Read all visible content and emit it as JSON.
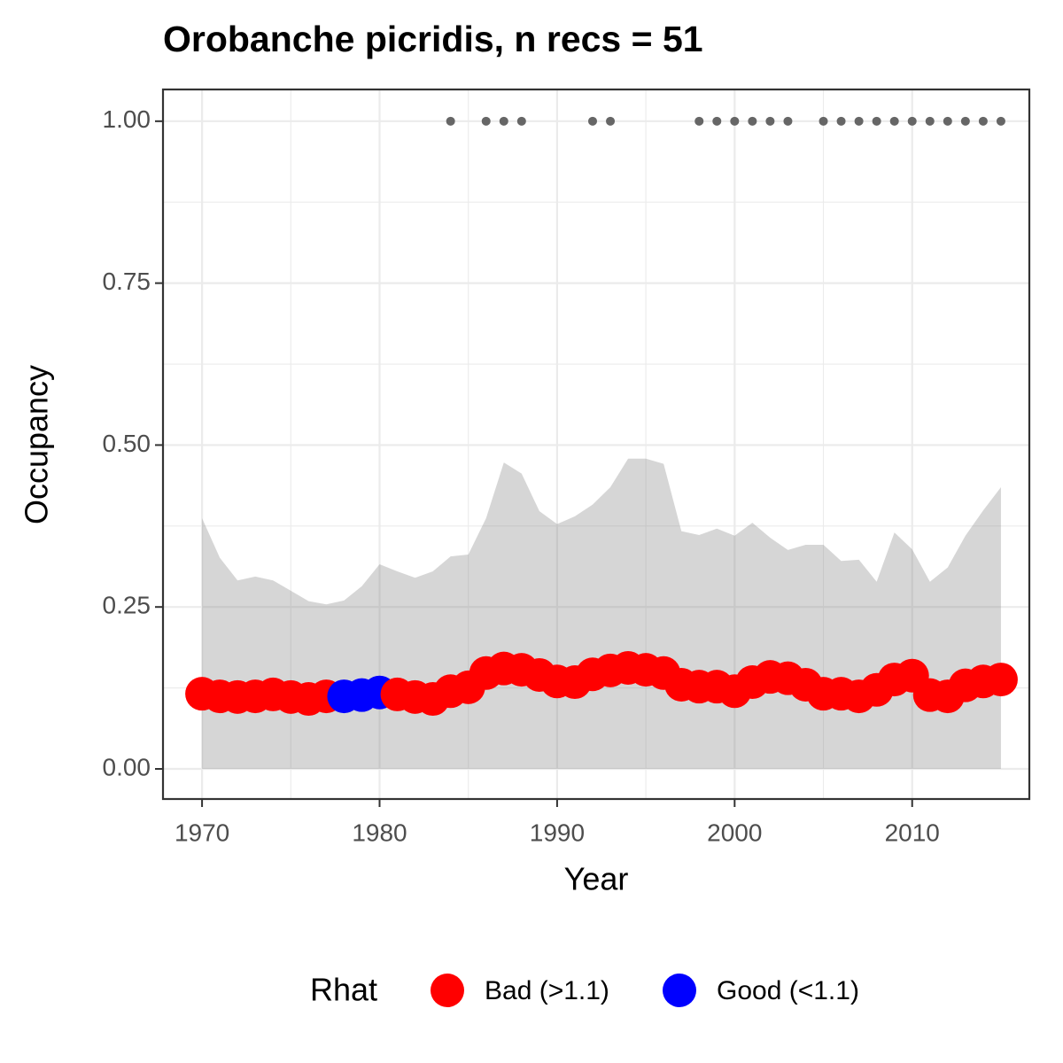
{
  "chart_data": {
    "type": "scatter",
    "title": "Orobanche picridis, n recs = 51",
    "x_label": "Year",
    "y_label": "Occupancy",
    "x": [
      1970,
      1971,
      1972,
      1973,
      1974,
      1975,
      1976,
      1977,
      1978,
      1979,
      1980,
      1981,
      1982,
      1983,
      1984,
      1985,
      1986,
      1987,
      1988,
      1989,
      1990,
      1991,
      1992,
      1993,
      1994,
      1995,
      1996,
      1997,
      1998,
      1999,
      2000,
      2001,
      2002,
      2003,
      2004,
      2005,
      2006,
      2007,
      2008,
      2009,
      2010,
      2011,
      2012,
      2013,
      2014,
      2015
    ],
    "occupancy": [
      0.116,
      0.112,
      0.111,
      0.112,
      0.115,
      0.111,
      0.108,
      0.112,
      0.112,
      0.114,
      0.118,
      0.115,
      0.111,
      0.108,
      0.12,
      0.126,
      0.148,
      0.155,
      0.153,
      0.145,
      0.135,
      0.134,
      0.146,
      0.152,
      0.156,
      0.153,
      0.148,
      0.13,
      0.127,
      0.127,
      0.12,
      0.134,
      0.142,
      0.14,
      0.13,
      0.116,
      0.116,
      0.112,
      0.122,
      0.138,
      0.144,
      0.114,
      0.112,
      0.129,
      0.135,
      0.138
    ],
    "rhat": [
      0,
      0,
      0,
      0,
      0,
      0,
      0,
      0,
      1,
      1,
      1,
      0,
      0,
      0,
      0,
      0,
      0,
      0,
      0,
      0,
      0,
      0,
      0,
      0,
      0,
      0,
      0,
      0,
      0,
      0,
      0,
      0,
      0,
      0,
      0,
      0,
      0,
      0,
      0,
      0,
      0,
      0,
      0,
      0,
      0,
      0
    ],
    "ci_upper": [
      0.387,
      0.326,
      0.291,
      0.297,
      0.291,
      0.275,
      0.259,
      0.254,
      0.26,
      0.282,
      0.316,
      0.305,
      0.295,
      0.305,
      0.328,
      0.331,
      0.387,
      0.473,
      0.456,
      0.398,
      0.378,
      0.39,
      0.408,
      0.435,
      0.479,
      0.479,
      0.471,
      0.367,
      0.361,
      0.371,
      0.36,
      0.38,
      0.357,
      0.338,
      0.346,
      0.346,
      0.321,
      0.323,
      0.289,
      0.365,
      0.339,
      0.289,
      0.311,
      0.36,
      0.399,
      0.435
    ],
    "ci_lower": [
      0,
      0,
      0,
      0,
      0,
      0,
      0,
      0,
      0,
      0,
      0,
      0,
      0,
      0,
      0,
      0,
      0,
      0,
      0,
      0,
      0,
      0,
      0,
      0,
      0,
      0,
      0,
      0,
      0,
      0,
      0,
      0,
      0,
      0,
      0,
      0,
      0,
      0,
      0,
      0,
      0,
      0,
      0,
      0,
      0,
      0
    ],
    "ribbon_color": "#808080",
    "records": {
      "x": [
        1984,
        1986,
        1987,
        1988,
        1992,
        1993,
        1998,
        1999,
        2000,
        2001,
        2002,
        2003,
        2005,
        2006,
        2007,
        2008,
        2009,
        2010,
        2011,
        2012,
        2013,
        2014,
        2015
      ],
      "values": [
        1,
        1,
        1,
        1,
        1,
        1,
        1,
        1,
        1,
        1,
        1,
        1,
        1,
        1,
        1,
        1,
        1,
        1,
        1,
        1,
        1,
        1,
        1
      ],
      "color": "#666666"
    },
    "legend": {
      "title": "Rhat",
      "position": "bottom",
      "entries": [
        {
          "name": "Bad (>1.1)",
          "color": "#ff0000"
        },
        {
          "name": "Good (<1.1)",
          "color": "#0000ff"
        }
      ]
    },
    "xlim": [
      1967.8,
      2016.6
    ],
    "ylim": [
      -0.0465,
      1.049
    ],
    "xticks": [
      1970,
      1980,
      1990,
      2000,
      2010
    ],
    "yticks": [
      {
        "value": 0,
        "label": "0.00"
      },
      {
        "value": 0.25,
        "label": "0.25"
      },
      {
        "value": 0.5,
        "label": "0.50"
      },
      {
        "value": 0.75,
        "label": "0.75"
      },
      {
        "value": 1,
        "label": "1.00"
      }
    ],
    "grid": true
  }
}
